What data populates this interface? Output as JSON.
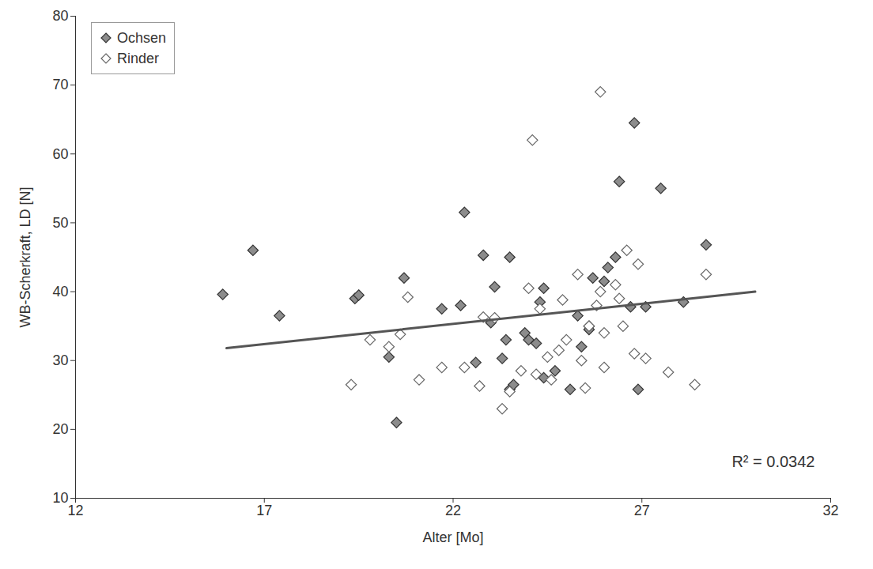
{
  "chart_data": {
    "type": "scatter",
    "x_label": "Alter [Mo]",
    "y_label": "WB-Scherkraft, LD [N]",
    "xlim": [
      12,
      32
    ],
    "xticks": [
      12,
      17,
      22,
      27,
      32
    ],
    "ylim": [
      10,
      80
    ],
    "yticks": [
      10,
      20,
      30,
      40,
      50,
      60,
      70,
      80
    ],
    "grid": false,
    "legend": "top-left",
    "annotations": [
      "R² = 0.0342"
    ],
    "trendline": {
      "x": [
        16,
        30
      ],
      "values": [
        31.8,
        40
      ],
      "color": "#555555"
    },
    "series": [
      {
        "name": "Ochsen",
        "color": "#8c8c8c",
        "marker": "filled-diamond",
        "x": [
          15.9,
          16.7,
          17.4,
          19.4,
          19.5,
          20.3,
          20.5,
          20.7,
          21.7,
          22.2,
          22.3,
          22.6,
          22.8,
          23.0,
          23.1,
          23.3,
          23.4,
          23.5,
          23.5,
          23.6,
          23.9,
          24.0,
          24.2,
          24.3,
          24.4,
          24.4,
          24.7,
          25.1,
          25.3,
          25.4,
          25.6,
          25.6,
          25.7,
          26.0,
          26.1,
          26.3,
          26.4,
          26.7,
          26.8,
          26.9,
          27.1,
          27.5,
          28.1,
          28.7
        ],
        "values": [
          39.6,
          46,
          36.5,
          39,
          39.5,
          30.5,
          21,
          42,
          37.5,
          38,
          51.5,
          29.7,
          45.3,
          35.5,
          40.7,
          30.3,
          33,
          45,
          25.8,
          26.5,
          34,
          33,
          32.5,
          38.5,
          27.5,
          40.5,
          28.5,
          25.8,
          36.5,
          32,
          35,
          34.5,
          42,
          41.5,
          43.5,
          45,
          56,
          37.8,
          64.5,
          25.8,
          37.8,
          55,
          38.5,
          46.8
        ]
      },
      {
        "name": "Rinder",
        "color": "#666666",
        "marker": "open-diamond",
        "x": [
          19.3,
          19.8,
          20.3,
          20.6,
          20.8,
          21.1,
          21.7,
          22.3,
          22.7,
          22.8,
          23.1,
          23.3,
          23.5,
          23.8,
          24.0,
          24.1,
          24.2,
          24.3,
          24.5,
          24.6,
          24.8,
          24.9,
          25.0,
          25.3,
          25.4,
          25.5,
          25.6,
          25.8,
          25.9,
          25.9,
          26.0,
          26.0,
          26.3,
          26.4,
          26.5,
          26.6,
          26.8,
          26.9,
          27.1,
          27.7,
          28.4,
          28.7
        ],
        "values": [
          26.5,
          33,
          32,
          33.8,
          39.2,
          27.2,
          29,
          29,
          26.3,
          36.3,
          36.2,
          23,
          25.5,
          28.5,
          40.5,
          62,
          28,
          37.5,
          30.5,
          27.2,
          31.5,
          38.8,
          33,
          42.5,
          30,
          26,
          35,
          38,
          40,
          69,
          29,
          34,
          41,
          39,
          35,
          46,
          31,
          44,
          30.3,
          28.3,
          26.5,
          42.5
        ]
      }
    ]
  }
}
